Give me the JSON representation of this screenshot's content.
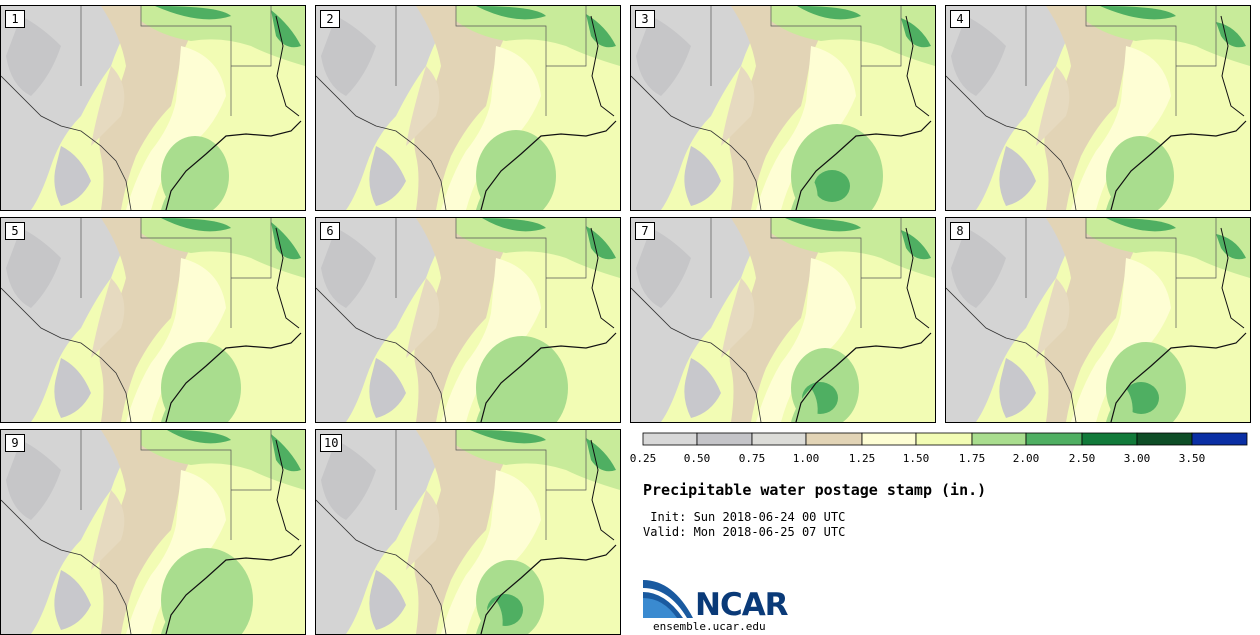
{
  "panels": [
    {
      "label": "1"
    },
    {
      "label": "2"
    },
    {
      "label": "3"
    },
    {
      "label": "4"
    },
    {
      "label": "5"
    },
    {
      "label": "6"
    },
    {
      "label": "7"
    },
    {
      "label": "8"
    },
    {
      "label": "9"
    },
    {
      "label": "10"
    }
  ],
  "colorbar": {
    "ticks": [
      "0.25",
      "0.50",
      "0.75",
      "1.00",
      "1.25",
      "1.50",
      "1.75",
      "2.00",
      "2.50",
      "3.00",
      "3.50"
    ],
    "colors": [
      "#d8d8d8",
      "#c4c4c8",
      "#dcdcd8",
      "#e2d4b6",
      "#fefed4",
      "#f2fcb4",
      "#a9dd8e",
      "#4faf62",
      "#117a3a",
      "#0e4d26",
      "#0a2fa4"
    ]
  },
  "chart_data": {
    "type": "heatmap",
    "title": "Precipitable water postage stamp (in.)",
    "units": "in.",
    "members": [
      "1",
      "2",
      "3",
      "4",
      "5",
      "6",
      "7",
      "8",
      "9",
      "10"
    ],
    "colorbar_levels": [
      0.25,
      0.5,
      0.75,
      1.0,
      1.25,
      1.5,
      1.75,
      2.0,
      2.5,
      3.0,
      3.5
    ]
  },
  "info": {
    "title": "Precipitable water postage stamp (in.)",
    "init": " Init: Sun 2018-06-24 00 UTC",
    "valid": "Valid: Mon 2018-06-25 07 UTC"
  },
  "logo": {
    "text": "NCAR",
    "url": "ensemble.ucar.edu"
  }
}
